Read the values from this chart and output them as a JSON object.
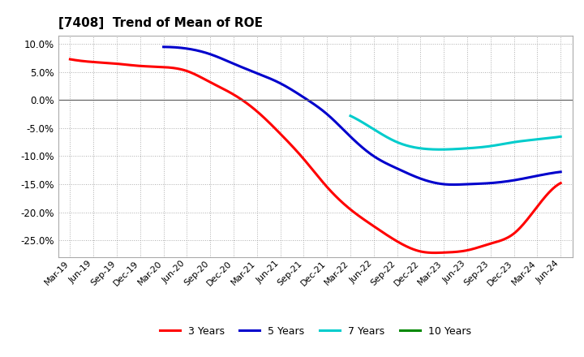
{
  "title": "[7408]  Trend of Mean of ROE",
  "background_color": "#ffffff",
  "plot_bg_color": "#ffffff",
  "grid_color": "#999999",
  "ylim": [
    -0.28,
    0.115
  ],
  "yticks": [
    0.1,
    0.05,
    0.0,
    -0.05,
    -0.1,
    -0.15,
    -0.2,
    -0.25
  ],
  "x_labels": [
    "Mar-19",
    "Jun-19",
    "Sep-19",
    "Dec-19",
    "Mar-20",
    "Jun-20",
    "Sep-20",
    "Dec-20",
    "Mar-21",
    "Jun-21",
    "Sep-21",
    "Dec-21",
    "Mar-22",
    "Jun-22",
    "Sep-22",
    "Dec-22",
    "Mar-23",
    "Jun-23",
    "Sep-23",
    "Dec-23",
    "Mar-24",
    "Jun-24"
  ],
  "series": {
    "3 Years": {
      "color": "#ff0000",
      "data_x": [
        0,
        1,
        2,
        3,
        4,
        5,
        6,
        7,
        8,
        9,
        10,
        11,
        12,
        13,
        14,
        15,
        16,
        17,
        18,
        19,
        20,
        21
      ],
      "data_y": [
        0.073,
        0.068,
        0.065,
        0.061,
        0.059,
        0.052,
        0.032,
        0.01,
        -0.02,
        -0.06,
        -0.105,
        -0.155,
        -0.195,
        -0.225,
        -0.252,
        -0.27,
        -0.272,
        -0.268,
        -0.256,
        -0.238,
        -0.19,
        -0.148
      ]
    },
    "5 Years": {
      "color": "#0000cc",
      "data_x": [
        4,
        5,
        6,
        7,
        8,
        9,
        10,
        11,
        12,
        13,
        14,
        15,
        16,
        17,
        18,
        19,
        20,
        21
      ],
      "data_y": [
        0.095,
        0.092,
        0.082,
        0.065,
        0.048,
        0.03,
        0.005,
        -0.025,
        -0.065,
        -0.1,
        -0.122,
        -0.14,
        -0.15,
        -0.15,
        -0.148,
        -0.143,
        -0.135,
        -0.128
      ]
    },
    "7 Years": {
      "color": "#00cccc",
      "data_x": [
        12,
        13,
        14,
        15,
        16,
        17,
        18,
        19,
        20,
        21
      ],
      "data_y": [
        -0.028,
        -0.052,
        -0.075,
        -0.086,
        -0.088,
        -0.086,
        -0.082,
        -0.075,
        -0.07,
        -0.065
      ]
    },
    "10 Years": {
      "color": "#008800",
      "data_x": [],
      "data_y": []
    }
  },
  "legend": {
    "labels": [
      "3 Years",
      "5 Years",
      "7 Years",
      "10 Years"
    ],
    "colors": [
      "#ff0000",
      "#0000cc",
      "#00cccc",
      "#008800"
    ]
  }
}
